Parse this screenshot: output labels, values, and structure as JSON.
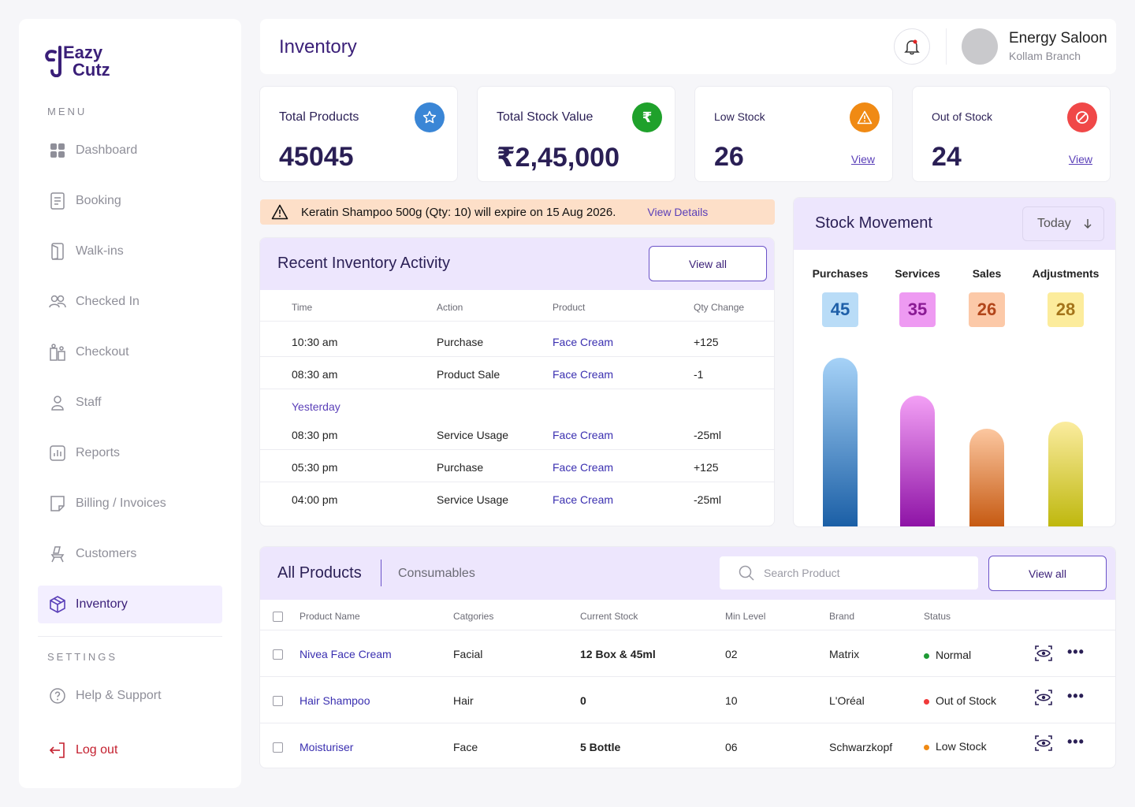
{
  "brand": {
    "line1": "Eazy",
    "line2": "Cutz"
  },
  "sidebar": {
    "menu_label": "MENU",
    "settings_label": "SETTINGS",
    "items": [
      {
        "label": "Dashboard",
        "icon": "grid-icon"
      },
      {
        "label": "Booking",
        "icon": "booking-icon"
      },
      {
        "label": "Walk-ins",
        "icon": "door-icon"
      },
      {
        "label": "Checked In",
        "icon": "users-icon"
      },
      {
        "label": "Checkout",
        "icon": "checkout-icon"
      },
      {
        "label": "Staff",
        "icon": "user-icon"
      },
      {
        "label": "Reports",
        "icon": "chart-icon"
      },
      {
        "label": "Billing / Invoices",
        "icon": "invoice-icon"
      },
      {
        "label": "Customers",
        "icon": "chair-icon"
      },
      {
        "label": "Inventory",
        "icon": "box-icon",
        "active": true
      }
    ],
    "help": "Help & Support",
    "logout": "Log out"
  },
  "header": {
    "title": "Inventory",
    "user_name": "Energy Saloon",
    "user_branch": "Kollam Branch"
  },
  "stats": [
    {
      "label": "Total Products",
      "value": "45045",
      "icon": "star-icon",
      "color": "#3a86d6"
    },
    {
      "label": "Total Stock Value",
      "value": "₹2,45,000",
      "icon": "rupee-icon",
      "color": "#1fa12b"
    },
    {
      "label": "Low Stock",
      "value": "26",
      "icon": "warning-icon",
      "color": "#f08a14",
      "link": "View"
    },
    {
      "label": "Out of Stock",
      "value": "24",
      "icon": "blocked-icon",
      "color": "#f04848",
      "link": "View"
    }
  ],
  "alert": {
    "text": "Keratin Shampoo 500g (Qty: 10) will expire on 15 Aug 2026.",
    "link": "View Details"
  },
  "activity": {
    "title": "Recent Inventory Activity",
    "view_all": "View all",
    "columns": [
      "Time",
      "Action",
      "Product",
      "Qty Change"
    ],
    "today": [
      {
        "time": "10:30 am",
        "action": "Purchase",
        "product": "Face Cream",
        "qty": "+125"
      },
      {
        "time": "08:30 am",
        "action": "Product Sale",
        "product": "Face Cream",
        "qty": "-1"
      }
    ],
    "group_label": "Yesterday",
    "yesterday": [
      {
        "time": "08:30 pm",
        "action": "Service Usage",
        "product": "Face Cream",
        "qty": "-25ml"
      },
      {
        "time": "05:30 pm",
        "action": "Purchase",
        "product": "Face Cream",
        "qty": "+125"
      },
      {
        "time": "04:00 pm",
        "action": "Service Usage",
        "product": "Face Cream",
        "qty": "-25ml"
      }
    ]
  },
  "stock_movement": {
    "title": "Stock Movement",
    "period": "Today",
    "items": [
      {
        "label": "Purchases",
        "value": "45",
        "bg": "#b9dcf7",
        "fg": "#1e5fa8",
        "grad": [
          "#a6d2f7",
          "#1b5fa6"
        ]
      },
      {
        "label": "Services",
        "value": "35",
        "bg": "#ee9af2",
        "fg": "#8a1a94",
        "grad": [
          "#f3a0f5",
          "#8e13a6"
        ]
      },
      {
        "label": "Sales",
        "value": "26",
        "bg": "#fcc9a8",
        "fg": "#b2451a",
        "grad": [
          "#fcc7a0",
          "#c65a12"
        ]
      },
      {
        "label": "Adjustments",
        "value": "28",
        "bg": "#fcec9c",
        "fg": "#a4741a",
        "grad": [
          "#fbec9f",
          "#bfb80e"
        ]
      }
    ]
  },
  "products": {
    "tab_active": "All Products",
    "tab_other": "Consumables",
    "search_placeholder": "Search Product",
    "view_all": "View all",
    "columns": [
      "Product Name",
      "Catgories",
      "Current Stock",
      "Min Level",
      "Brand",
      "Status"
    ],
    "rows": [
      {
        "name": "Nivea Face Cream",
        "category": "Facial",
        "stock": "12 Box & 45ml",
        "min": "02",
        "brand": "Matrix",
        "status": "Normal",
        "status_color": "#1e9a35"
      },
      {
        "name": "Hair Shampoo",
        "category": "Hair",
        "stock": "0",
        "min": "10",
        "brand": "L'Oréal",
        "status": "Out of Stock",
        "status_color": "#f03a3a"
      },
      {
        "name": "Moisturiser",
        "category": "Face",
        "stock": "5 Bottle",
        "min": "06",
        "brand": "Schwarzkopf",
        "status": "Low Stock",
        "status_color": "#f08a14"
      }
    ]
  }
}
